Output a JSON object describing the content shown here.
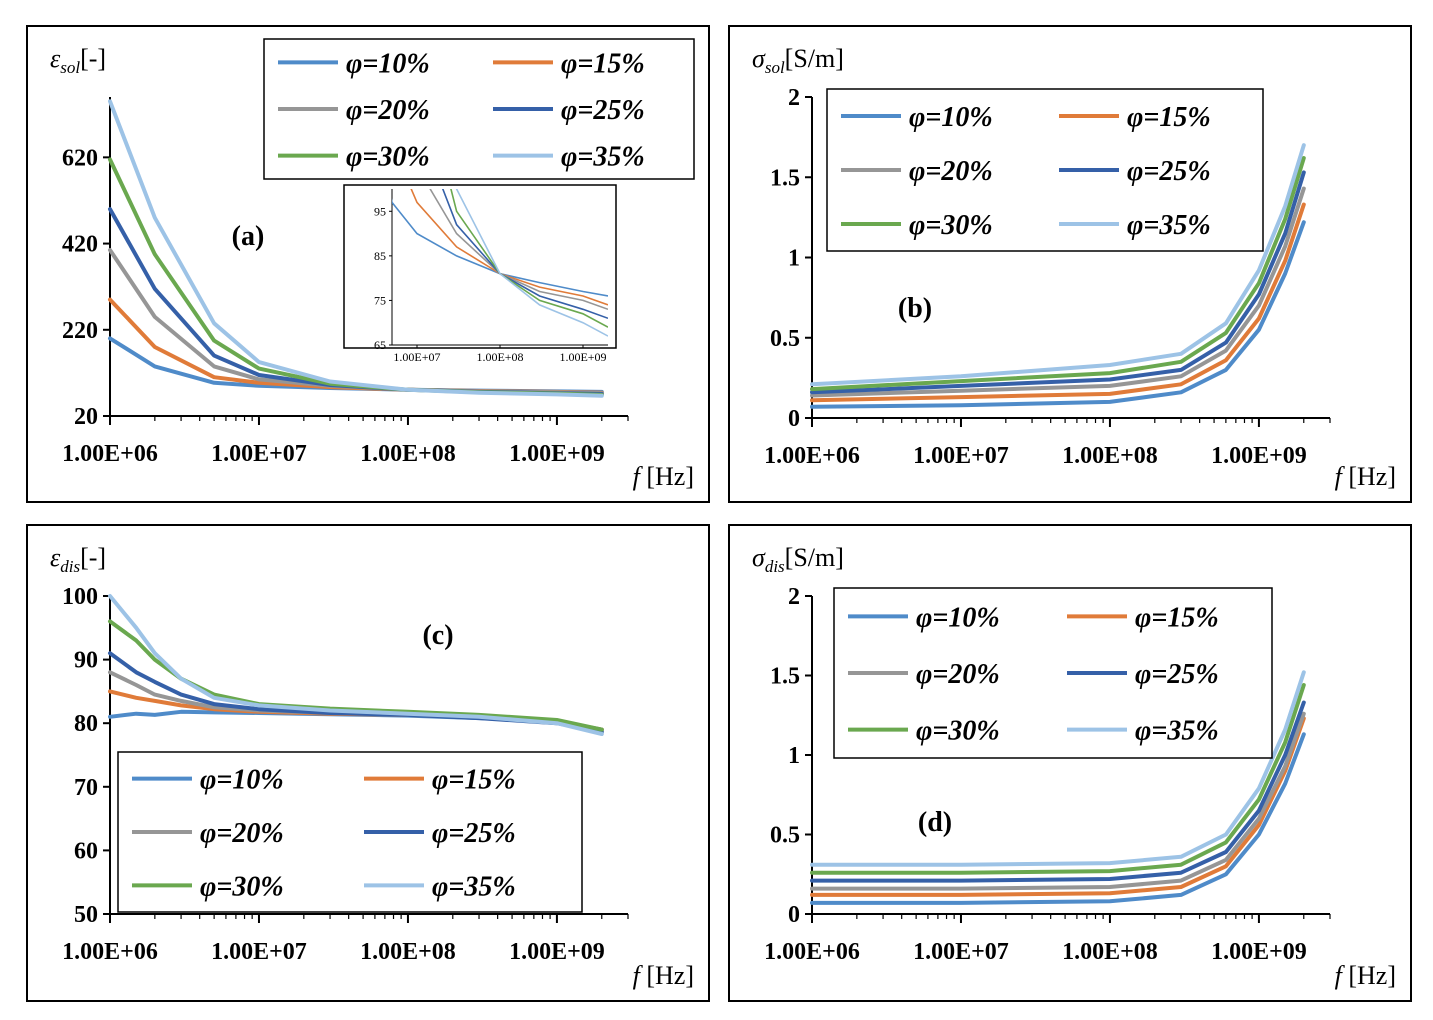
{
  "chart_data": [
    {
      "id": "a",
      "type": "line",
      "panel_label": "(a)",
      "ylabel_symbol": "ε",
      "ylabel_sub": "sol",
      "ylabel_unit": "[-]",
      "xlabel_symbol": "f",
      "xlabel_unit": "[Hz]",
      "x_scale": "log",
      "xlim": [
        1000000,
        3000000000
      ],
      "ylim": [
        20,
        760
      ],
      "x_ticks": [
        1000000,
        10000000,
        100000000,
        1000000000
      ],
      "x_tick_labels": [
        "1.00E+06",
        "1.00E+07",
        "1.00E+08",
        "1.00E+09"
      ],
      "y_ticks": [
        20,
        220,
        420,
        620
      ],
      "y_tick_labels": [
        "20",
        "220",
        "420",
        "620"
      ],
      "legend_placement": "top-right",
      "series": [
        {
          "name": "φ=10%",
          "color": "#4f8bc9",
          "x": [
            1000000,
            2000000,
            5000000,
            10000000,
            30000000,
            100000000,
            300000000,
            1000000000,
            2000000000
          ],
          "y": [
            200,
            135,
            97,
            90,
            85,
            81,
            79,
            77,
            76
          ]
        },
        {
          "name": "φ=15%",
          "color": "#e07b39",
          "x": [
            1000000,
            2000000,
            5000000,
            10000000,
            30000000,
            100000000,
            300000000,
            1000000000,
            2000000000
          ],
          "y": [
            290,
            180,
            110,
            97,
            87,
            81,
            78,
            76,
            74
          ]
        },
        {
          "name": "φ=20%",
          "color": "#969696",
          "x": [
            1000000,
            2000000,
            5000000,
            10000000,
            30000000,
            100000000,
            300000000,
            1000000000,
            2000000000
          ],
          "y": [
            405,
            250,
            135,
            105,
            90,
            81,
            77,
            75,
            73
          ]
        },
        {
          "name": "φ=25%",
          "color": "#3560a8",
          "x": [
            1000000,
            2000000,
            5000000,
            10000000,
            30000000,
            100000000,
            300000000,
            1000000000,
            2000000000
          ],
          "y": [
            500,
            315,
            160,
            115,
            92,
            81,
            76,
            73,
            71
          ]
        },
        {
          "name": "φ=30%",
          "color": "#6aa84f",
          "x": [
            1000000,
            2000000,
            5000000,
            10000000,
            30000000,
            100000000,
            300000000,
            1000000000,
            2000000000
          ],
          "y": [
            615,
            395,
            195,
            130,
            95,
            81,
            75,
            72,
            69
          ]
        },
        {
          "name": "φ=35%",
          "color": "#9dc3e6",
          "x": [
            1000000,
            2000000,
            5000000,
            10000000,
            30000000,
            100000000,
            300000000,
            1000000000,
            2000000000
          ],
          "y": [
            750,
            480,
            235,
            145,
            100,
            81,
            74,
            70,
            67
          ]
        }
      ],
      "inset": {
        "x_scale": "log",
        "xlim": [
          5000000,
          2000000000
        ],
        "ylim": [
          65,
          100
        ],
        "x_ticks": [
          10000000,
          100000000,
          1000000000
        ],
        "x_tick_labels": [
          "1.00E+07",
          "1.00E+08",
          "1.00E+09"
        ],
        "y_ticks": [
          65,
          75,
          85,
          95
        ],
        "y_tick_labels": [
          "65",
          "75",
          "85",
          "95"
        ]
      }
    },
    {
      "id": "b",
      "type": "line",
      "panel_label": "(b)",
      "ylabel_symbol": "σ",
      "ylabel_sub": "sol",
      "ylabel_unit": "[S/m]",
      "xlabel_symbol": "f",
      "xlabel_unit": "[Hz]",
      "x_scale": "log",
      "xlim": [
        1000000,
        3000000000
      ],
      "ylim": [
        0,
        2
      ],
      "x_ticks": [
        1000000,
        10000000,
        100000000,
        1000000000
      ],
      "x_tick_labels": [
        "1.00E+06",
        "1.00E+07",
        "1.00E+08",
        "1.00E+09"
      ],
      "y_ticks": [
        0,
        0.5,
        1,
        1.5,
        2
      ],
      "y_tick_labels": [
        "0",
        "0.5",
        "1",
        "1.5",
        "2"
      ],
      "legend_placement": "top-left",
      "series": [
        {
          "name": "φ=10%",
          "color": "#4f8bc9",
          "x": [
            1000000,
            10000000,
            100000000,
            300000000,
            600000000,
            1000000000,
            1500000000,
            2000000000
          ],
          "y": [
            0.07,
            0.08,
            0.1,
            0.16,
            0.3,
            0.55,
            0.9,
            1.22
          ]
        },
        {
          "name": "φ=15%",
          "color": "#e07b39",
          "x": [
            1000000,
            10000000,
            100000000,
            300000000,
            600000000,
            1000000000,
            1500000000,
            2000000000
          ],
          "y": [
            0.11,
            0.13,
            0.15,
            0.21,
            0.36,
            0.62,
            0.98,
            1.33
          ]
        },
        {
          "name": "φ=20%",
          "color": "#969696",
          "x": [
            1000000,
            10000000,
            100000000,
            300000000,
            600000000,
            1000000000,
            1500000000,
            2000000000
          ],
          "y": [
            0.14,
            0.17,
            0.2,
            0.26,
            0.42,
            0.7,
            1.07,
            1.43
          ]
        },
        {
          "name": "φ=25%",
          "color": "#3560a8",
          "x": [
            1000000,
            10000000,
            100000000,
            300000000,
            600000000,
            1000000000,
            1500000000,
            2000000000
          ],
          "y": [
            0.16,
            0.2,
            0.24,
            0.3,
            0.47,
            0.77,
            1.15,
            1.53
          ]
        },
        {
          "name": "φ=30%",
          "color": "#6aa84f",
          "x": [
            1000000,
            10000000,
            100000000,
            300000000,
            600000000,
            1000000000,
            1500000000,
            2000000000
          ],
          "y": [
            0.18,
            0.23,
            0.28,
            0.35,
            0.53,
            0.84,
            1.24,
            1.62
          ]
        },
        {
          "name": "φ=35%",
          "color": "#9dc3e6",
          "x": [
            1000000,
            10000000,
            100000000,
            300000000,
            600000000,
            1000000000,
            1500000000,
            2000000000
          ],
          "y": [
            0.21,
            0.26,
            0.33,
            0.4,
            0.59,
            0.92,
            1.32,
            1.7
          ]
        }
      ]
    },
    {
      "id": "c",
      "type": "line",
      "panel_label": "(c)",
      "ylabel_symbol": "ε",
      "ylabel_sub": "dis",
      "ylabel_unit": "[-]",
      "xlabel_symbol": "f",
      "xlabel_unit": "[Hz]",
      "x_scale": "log",
      "xlim": [
        1000000,
        3000000000
      ],
      "ylim": [
        50,
        100
      ],
      "x_ticks": [
        1000000,
        10000000,
        100000000,
        1000000000
      ],
      "x_tick_labels": [
        "1.00E+06",
        "1.00E+07",
        "1.00E+08",
        "1.00E+09"
      ],
      "y_ticks": [
        50,
        60,
        70,
        80,
        90,
        100
      ],
      "y_tick_labels": [
        "50",
        "60",
        "70",
        "80",
        "90",
        "100"
      ],
      "legend_placement": "bottom-left",
      "series": [
        {
          "name": "φ=10%",
          "color": "#4f8bc9",
          "x": [
            1000000,
            1500000,
            2000000,
            3000000,
            5000000,
            10000000,
            30000000,
            100000000,
            300000000,
            1000000000,
            2000000000
          ],
          "y": [
            81,
            81.5,
            81.3,
            81.8,
            81.7,
            81.6,
            81.4,
            81.2,
            80.8,
            80.3,
            79
          ]
        },
        {
          "name": "φ=15%",
          "color": "#e07b39",
          "x": [
            1000000,
            1500000,
            2000000,
            3000000,
            5000000,
            10000000,
            30000000,
            100000000,
            300000000,
            1000000000,
            2000000000
          ],
          "y": [
            85,
            84,
            83.5,
            82.8,
            82.2,
            81.8,
            81.5,
            81.3,
            80.9,
            80.3,
            79
          ]
        },
        {
          "name": "φ=20%",
          "color": "#969696",
          "x": [
            1000000,
            1500000,
            2000000,
            3000000,
            5000000,
            10000000,
            30000000,
            100000000,
            300000000,
            1000000000,
            2000000000
          ],
          "y": [
            88,
            86,
            84.5,
            83.5,
            82.5,
            82,
            81.6,
            81.3,
            80.9,
            80.2,
            78.8
          ]
        },
        {
          "name": "φ=25%",
          "color": "#3560a8",
          "x": [
            1000000,
            1500000,
            2000000,
            3000000,
            5000000,
            10000000,
            30000000,
            100000000,
            300000000,
            1000000000,
            2000000000
          ],
          "y": [
            91,
            88,
            86.5,
            84.5,
            83,
            82.2,
            81.6,
            81.3,
            80.8,
            80,
            78.6
          ]
        },
        {
          "name": "φ=30%",
          "color": "#6aa84f",
          "x": [
            1000000,
            1500000,
            2000000,
            3000000,
            5000000,
            10000000,
            30000000,
            100000000,
            300000000,
            1000000000,
            2000000000
          ],
          "y": [
            96,
            93,
            90,
            87,
            84.5,
            83,
            82.3,
            81.8,
            81.3,
            80.5,
            79
          ]
        },
        {
          "name": "φ=35%",
          "color": "#9dc3e6",
          "x": [
            1000000,
            1500000,
            2000000,
            3000000,
            5000000,
            10000000,
            30000000,
            100000000,
            300000000,
            1000000000,
            2000000000
          ],
          "y": [
            100,
            95,
            91,
            87,
            84,
            82.8,
            82,
            81.5,
            81,
            80,
            78.3
          ]
        }
      ]
    },
    {
      "id": "d",
      "type": "line",
      "panel_label": "(d)",
      "ylabel_symbol": "σ",
      "ylabel_sub": "dis",
      "ylabel_unit": "[S/m]",
      "xlabel_symbol": "f",
      "xlabel_unit": "[Hz]",
      "x_scale": "log",
      "xlim": [
        1000000,
        3000000000
      ],
      "ylim": [
        0,
        2
      ],
      "x_ticks": [
        1000000,
        10000000,
        100000000,
        1000000000
      ],
      "x_tick_labels": [
        "1.00E+06",
        "1.00E+07",
        "1.00E+08",
        "1.00E+09"
      ],
      "y_ticks": [
        0,
        0.5,
        1,
        1.5,
        2
      ],
      "y_tick_labels": [
        "0",
        "0.5",
        "1",
        "1.5",
        "2"
      ],
      "legend_placement": "top-right",
      "series": [
        {
          "name": "φ=10%",
          "color": "#4f8bc9",
          "x": [
            1000000,
            10000000,
            100000000,
            300000000,
            600000000,
            1000000000,
            1500000000,
            2000000000
          ],
          "y": [
            0.07,
            0.07,
            0.08,
            0.12,
            0.25,
            0.5,
            0.82,
            1.13
          ]
        },
        {
          "name": "φ=15%",
          "color": "#e07b39",
          "x": [
            1000000,
            10000000,
            100000000,
            300000000,
            600000000,
            1000000000,
            1500000000,
            2000000000
          ],
          "y": [
            0.12,
            0.12,
            0.13,
            0.17,
            0.3,
            0.56,
            0.9,
            1.23
          ]
        },
        {
          "name": "φ=20%",
          "color": "#969696",
          "x": [
            1000000,
            10000000,
            100000000,
            300000000,
            600000000,
            1000000000,
            1500000000,
            2000000000
          ],
          "y": [
            0.16,
            0.16,
            0.17,
            0.21,
            0.34,
            0.6,
            0.93,
            1.26
          ]
        },
        {
          "name": "φ=25%",
          "color": "#3560a8",
          "x": [
            1000000,
            10000000,
            100000000,
            300000000,
            600000000,
            1000000000,
            1500000000,
            2000000000
          ],
          "y": [
            0.21,
            0.21,
            0.22,
            0.26,
            0.39,
            0.65,
            1.0,
            1.33
          ]
        },
        {
          "name": "φ=30%",
          "color": "#6aa84f",
          "x": [
            1000000,
            10000000,
            100000000,
            300000000,
            600000000,
            1000000000,
            1500000000,
            2000000000
          ],
          "y": [
            0.26,
            0.26,
            0.27,
            0.31,
            0.45,
            0.72,
            1.08,
            1.44
          ]
        },
        {
          "name": "φ=35%",
          "color": "#9dc3e6",
          "x": [
            1000000,
            10000000,
            100000000,
            300000000,
            600000000,
            1000000000,
            1500000000,
            2000000000
          ],
          "y": [
            0.31,
            0.31,
            0.32,
            0.36,
            0.5,
            0.79,
            1.16,
            1.52
          ]
        }
      ]
    }
  ]
}
